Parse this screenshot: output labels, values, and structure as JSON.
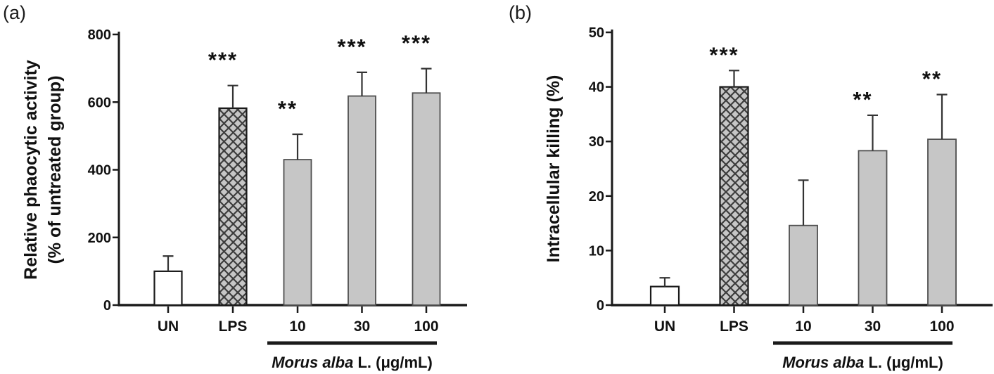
{
  "figure": {
    "title": "",
    "panels": [
      "(a)",
      "(b)"
    ]
  },
  "colors": {
    "background": "#ffffff",
    "axis": "#1a1a1a",
    "text": "#111111",
    "bar_white": "#ffffff",
    "bar_gray": "#c6c6c6",
    "gray_border": "#4f4f4f",
    "hatch_line": "#3d3d3d",
    "error": "#333333"
  },
  "chart_data": [
    {
      "type": "bar",
      "panel_label": "(a)",
      "title": "",
      "ylabel": "Relative phaocytic activity (% of untreated group)",
      "ylabel_lines": [
        "Relative phaocytic activity",
        "(% of untreated group)"
      ],
      "xlabel": "",
      "ylim": [
        0,
        800
      ],
      "yticks": [
        0,
        200,
        400,
        600,
        800
      ],
      "grid": false,
      "legend": "none",
      "categories": [
        "UN",
        "LPS",
        "10",
        "30",
        "100"
      ],
      "values": [
        100,
        582,
        430,
        618,
        627
      ],
      "errors_upper": [
        45,
        67,
        75,
        70,
        72
      ],
      "significance": [
        "",
        "***",
        "**",
        "***",
        "***"
      ],
      "bar_styles": [
        "white",
        "crosshatch",
        "gray",
        "gray",
        "gray"
      ],
      "group_label_italic": "Morus alba",
      "group_label_rest": " L. (μg/mL)",
      "group_span_categories": [
        "10",
        "30",
        "100"
      ]
    },
    {
      "type": "bar",
      "panel_label": "(b)",
      "title": "",
      "ylabel": "Intracellular killing (%)",
      "ylabel_lines": [
        "Intracellular killing (%)"
      ],
      "xlabel": "",
      "ylim": [
        0,
        50
      ],
      "yticks": [
        0,
        10,
        20,
        30,
        40,
        50
      ],
      "grid": false,
      "legend": "none",
      "categories": [
        "UN",
        "LPS",
        "10",
        "30",
        "100"
      ],
      "values": [
        3.4,
        40,
        14.6,
        28.3,
        30.4
      ],
      "errors_upper": [
        1.6,
        3,
        8.3,
        6.5,
        8.2
      ],
      "significance": [
        "",
        "***",
        "",
        "**",
        "**"
      ],
      "bar_styles": [
        "white",
        "crosshatch",
        "gray",
        "gray",
        "gray"
      ],
      "group_label_italic": "Morus alba",
      "group_label_rest": " L. (μg/mL)",
      "group_span_categories": [
        "10",
        "30",
        "100"
      ]
    }
  ]
}
